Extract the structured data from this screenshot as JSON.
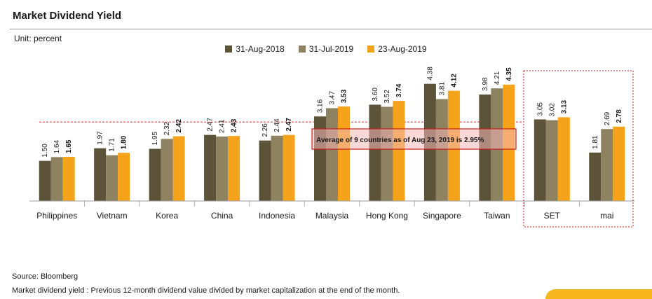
{
  "title": "Market Dividend Yield",
  "unit": "Unit: percent",
  "source": "Source: Bloomberg",
  "footnote": "Market dividend yield : Previous 12-month dividend value divided by market capitalization at the end of the month.",
  "colors": {
    "series_1": "#5c5339",
    "series_2": "#8f8260",
    "series_3": "#f5a31a",
    "average_line": "#e03030",
    "highlight_box": "#cc1e1e"
  },
  "chart_data": {
    "type": "bar",
    "title": "Market Dividend Yield",
    "xlabel": "",
    "ylabel": "percent",
    "ylim": [
      0,
      4.5
    ],
    "grid": false,
    "legend": "top-center",
    "categories": [
      "Philippines",
      "Vietnam",
      "Korea",
      "China",
      "Indonesia",
      "Malaysia",
      "Hong Kong",
      "Singapore",
      "Taiwan",
      "SET",
      "mai"
    ],
    "series": [
      {
        "name": "31-Aug-2018",
        "values": [
          1.5,
          1.97,
          1.95,
          2.47,
          2.26,
          3.16,
          3.6,
          4.38,
          3.98,
          3.05,
          1.81
        ]
      },
      {
        "name": "31-Jul-2019",
        "values": [
          1.64,
          1.71,
          2.32,
          2.41,
          2.44,
          3.47,
          3.52,
          3.81,
          4.21,
          3.02,
          2.69
        ]
      },
      {
        "name": "23-Aug-2019",
        "values": [
          1.65,
          1.8,
          2.42,
          2.43,
          2.47,
          3.53,
          3.74,
          4.12,
          4.35,
          3.13,
          2.78
        ]
      }
    ],
    "average_value": 2.95,
    "annotation": "Average of 9 countries as of Aug 23, 2019 is  2.95%",
    "highlighted_categories": [
      "SET",
      "mai"
    ]
  }
}
